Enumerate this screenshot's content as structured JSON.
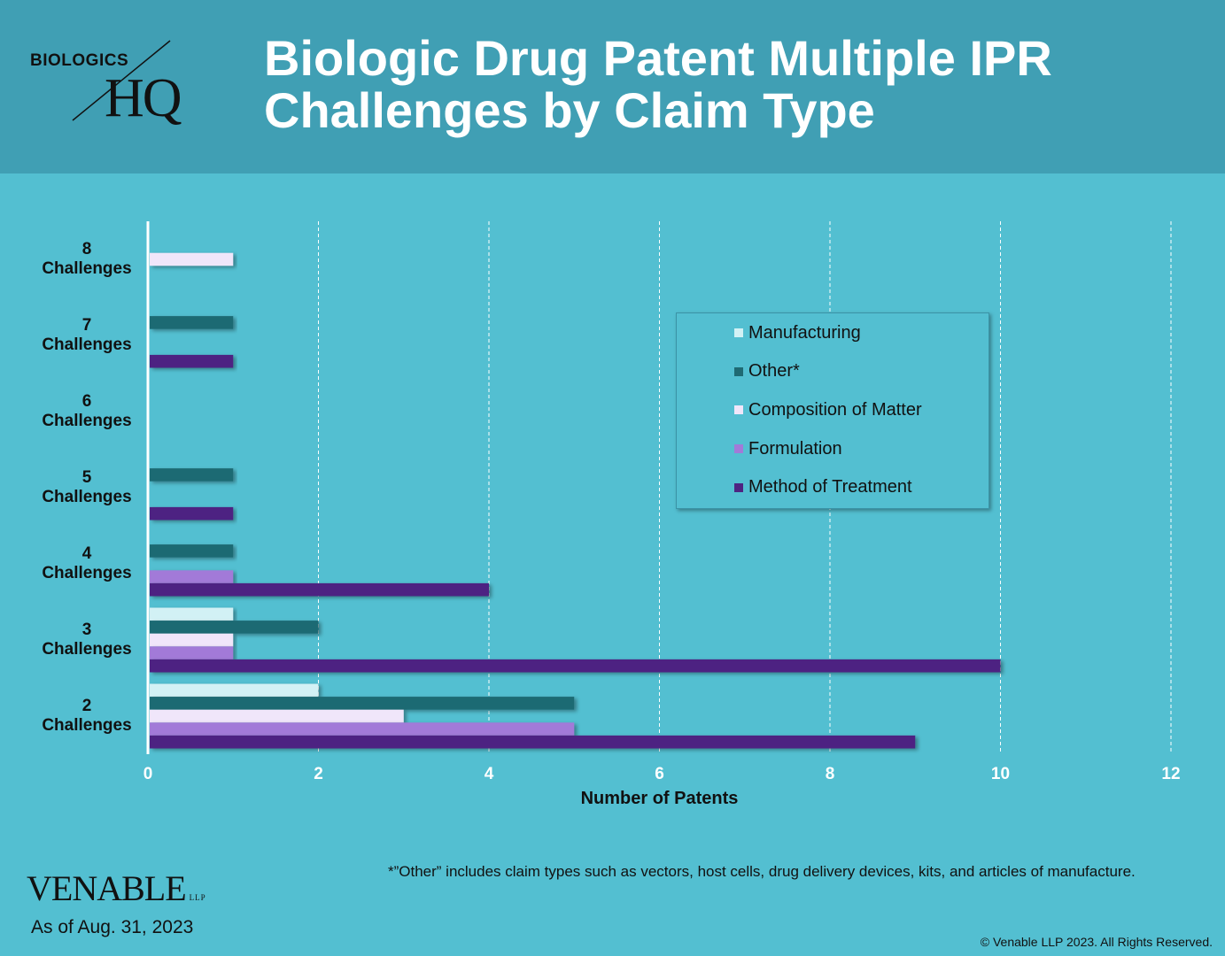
{
  "header": {
    "title": "Biologic Drug Patent Multiple IPR Challenges by Claim Type",
    "logo_small": "BIOLOGICS",
    "logo_big": "HQ"
  },
  "chart_data": {
    "type": "bar",
    "orientation": "horizontal",
    "categories": [
      [
        "8",
        "Challenges"
      ],
      [
        "7",
        "Challenges"
      ],
      [
        "6",
        "Challenges"
      ],
      [
        "5",
        "Challenges"
      ],
      [
        "4",
        "Challenges"
      ],
      [
        "3",
        "Challenges"
      ],
      [
        "2",
        "Challenges"
      ]
    ],
    "series": [
      {
        "name": "Manufacturing",
        "color": "#d2f1f5",
        "values": [
          0,
          0,
          0,
          0,
          0,
          1,
          2
        ]
      },
      {
        "name": "Other*",
        "color": "#1f6a73",
        "values": [
          0,
          1,
          0,
          1,
          1,
          2,
          5
        ]
      },
      {
        "name": "Composition of Matter",
        "color": "#f0e6fa",
        "values": [
          1,
          0,
          0,
          0,
          0,
          1,
          3
        ]
      },
      {
        "name": "Formulation",
        "color": "#a27ad8",
        "values": [
          0,
          0,
          0,
          0,
          1,
          1,
          5
        ]
      },
      {
        "name": "Method of Treatment",
        "color": "#4e2482",
        "values": [
          0,
          1,
          0,
          1,
          4,
          10,
          9
        ]
      }
    ],
    "xlabel": "Number of Patents",
    "xlim": [
      0,
      12
    ],
    "xticks": [
      0,
      2,
      4,
      6,
      8,
      10,
      12
    ],
    "grid": "vertical dashed",
    "legend_position": "right"
  },
  "footnote": "*”Other” includes claim types such as vectors, host cells, drug delivery devices, kits, and articles of manufacture.",
  "footer": {
    "brand": "VENABLE",
    "brand_suffix": "LLP",
    "as_of": "As of Aug. 31, 2023",
    "copyright": "© Venable LLP 2023. All Rights Reserved."
  }
}
